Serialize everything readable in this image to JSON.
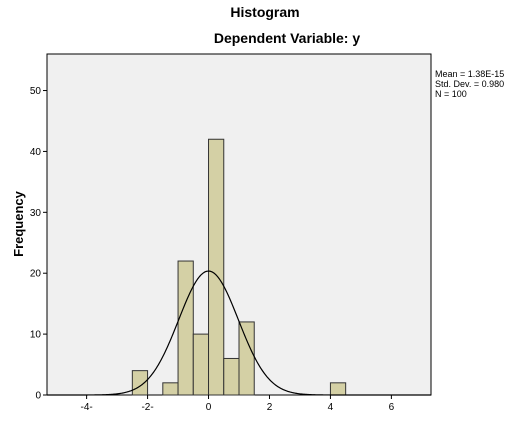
{
  "chart_data": {
    "type": "bar",
    "title": "Histogram",
    "subtitle": "Dependent Variable: y",
    "xlabel": "",
    "ylabel": "Frequency",
    "xlim": [
      -5.3,
      7.3
    ],
    "ylim": [
      0,
      56
    ],
    "x_ticks": [
      {
        "value": -4,
        "label": "-4-"
      },
      {
        "value": -2,
        "label": "-2-"
      },
      {
        "value": 0,
        "label": "0"
      },
      {
        "value": 2,
        "label": "2"
      },
      {
        "value": 4,
        "label": "4"
      },
      {
        "value": 6,
        "label": "6"
      }
    ],
    "y_ticks": [
      {
        "value": 0,
        "label": "0"
      },
      {
        "value": 10,
        "label": "10"
      },
      {
        "value": 20,
        "label": "20"
      },
      {
        "value": 30,
        "label": "30"
      },
      {
        "value": 40,
        "label": "40"
      },
      {
        "value": 50,
        "label": "50"
      }
    ],
    "bin_width": 0.5,
    "bins": [
      {
        "x0": -2.5,
        "x1": -2.0,
        "count": 4
      },
      {
        "x0": -1.5,
        "x1": -1.0,
        "count": 2
      },
      {
        "x0": -1.0,
        "x1": -0.5,
        "count": 22
      },
      {
        "x0": -0.5,
        "x1": 0.0,
        "count": 10
      },
      {
        "x0": 0.0,
        "x1": 0.5,
        "count": 42
      },
      {
        "x0": 0.5,
        "x1": 1.0,
        "count": 6
      },
      {
        "x0": 1.0,
        "x1": 1.5,
        "count": 12
      },
      {
        "x0": 4.0,
        "x1": 4.5,
        "count": 2
      }
    ],
    "normal_curve": {
      "mean": 0.0,
      "sd": 0.98,
      "n": 100
    },
    "stats": [
      "Mean = 1.38E-15",
      "Std. Dev. = 0.980",
      "N = 100"
    ],
    "grid": false,
    "legend": "top-right",
    "colors": {
      "bar_fill": "#d4d0a5",
      "bar_stroke": "#333333",
      "plot_bg": "#f0f0f0",
      "curve": "#000000"
    }
  }
}
